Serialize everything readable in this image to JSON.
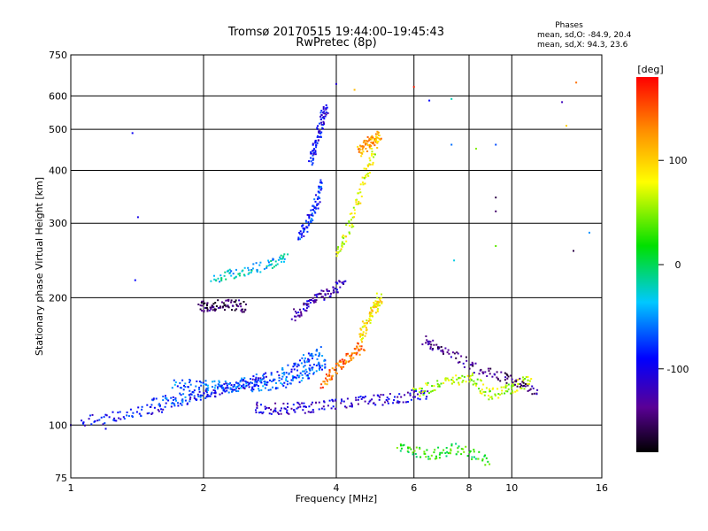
{
  "chart_data": {
    "type": "scatter",
    "title": "Tromsø 20170515 19:44:00–19:45:43",
    "subtitle": "RwPretec (8p)",
    "xlabel": "Frequency [MHz]",
    "ylabel": "Stationary phase Virtual Height [km]",
    "x_scale": "log",
    "y_scale": "log",
    "xlim": [
      1,
      16
    ],
    "ylim": [
      75,
      750
    ],
    "xticks": [
      1,
      2,
      4,
      6,
      8,
      10,
      16
    ],
    "xtick_labels": [
      "1",
      "2",
      "4",
      "6",
      "8",
      "10",
      "16"
    ],
    "yticks": [
      75,
      100,
      200,
      300,
      400,
      500,
      600,
      750
    ],
    "ytick_labels": [
      "75",
      "100",
      "200",
      "300",
      "400",
      "500",
      "600",
      "750"
    ],
    "grid": true,
    "info_box": {
      "heading": "Phases",
      "line1": "mean, sd,O: -84.9, 20.4",
      "line2": "mean, sd,X:  94.3, 23.6"
    },
    "colorbar": {
      "label": "[deg]",
      "range": [
        -180,
        180
      ],
      "ticks": [
        100,
        0,
        -100
      ],
      "tick_labels": [
        "100",
        "0",
        "-100"
      ],
      "colormap": "rainbow-black-to-red"
    },
    "traces": [
      {
        "freq": [
          1.05,
          1.3,
          1.6,
          2.0,
          2.4,
          2.8
        ],
        "height": [
          102,
          105,
          110,
          118,
          124,
          128
        ],
        "phase": -95
      },
      {
        "freq": [
          1.5,
          1.8,
          2.1,
          2.5,
          3.0,
          3.4,
          3.7
        ],
        "height": [
          112,
          116,
          120,
          126,
          132,
          142,
          150
        ],
        "phase": -75
      },
      {
        "freq": [
          1.7,
          2.0,
          2.4,
          2.8,
          3.2,
          3.5,
          3.8
        ],
        "height": [
          125,
          124,
          123,
          124,
          128,
          134,
          140
        ],
        "phase": -65
      },
      {
        "freq": [
          2.6,
          3.0,
          3.4,
          4.0,
          4.8,
          5.6,
          6.5
        ],
        "height": [
          110,
          109,
          110,
          112,
          114,
          116,
          119
        ],
        "phase": -110
      },
      {
        "freq": [
          2.1,
          2.4,
          2.8,
          3.1
        ],
        "height": [
          222,
          230,
          238,
          250
        ],
        "phase": -35
      },
      {
        "freq": [
          1.95,
          2.1,
          2.3,
          2.5
        ],
        "height": [
          190,
          192,
          193,
          190
        ],
        "phase": -150
      },
      {
        "freq": [
          3.2,
          3.5,
          3.8,
          4.2
        ],
        "height": [
          180,
          195,
          205,
          215
        ],
        "phase": -120
      },
      {
        "freq": [
          3.3,
          3.45,
          3.6,
          3.7
        ],
        "height": [
          280,
          300,
          330,
          380
        ],
        "phase": -80
      },
      {
        "freq": [
          3.5,
          3.6,
          3.7,
          3.8
        ],
        "height": [
          420,
          460,
          520,
          560
        ],
        "phase": -100
      },
      {
        "freq": [
          4.0,
          4.3,
          4.6,
          4.9
        ],
        "height": [
          250,
          300,
          380,
          450
        ],
        "phase": 75
      },
      {
        "freq": [
          4.5,
          4.7,
          4.9,
          5.0
        ],
        "height": [
          440,
          460,
          475,
          480
        ],
        "phase": 115
      },
      {
        "freq": [
          4.5,
          4.7,
          4.9,
          5.0
        ],
        "height": [
          160,
          175,
          190,
          200
        ],
        "phase": 90
      },
      {
        "freq": [
          3.7,
          4.0,
          4.3,
          4.6
        ],
        "height": [
          125,
          135,
          145,
          155
        ],
        "phase": 140
      },
      {
        "freq": [
          6.0,
          7.0,
          8.0,
          9.0,
          10.0,
          11.0
        ],
        "height": [
          120,
          125,
          130,
          118,
          122,
          128
        ],
        "phase": 60
      },
      {
        "freq": [
          6.3,
          7.0,
          8.5,
          10.0,
          11.5
        ],
        "height": [
          160,
          150,
          135,
          128,
          120
        ],
        "phase": -140
      },
      {
        "freq": [
          5.5,
          6.5,
          7.5,
          9.0
        ],
        "height": [
          90,
          85,
          88,
          82
        ],
        "phase": 20
      }
    ],
    "points": [
      {
        "freq": 1.38,
        "height": 490,
        "phase": -95
      },
      {
        "freq": 1.42,
        "height": 310,
        "phase": -100
      },
      {
        "freq": 1.4,
        "height": 220,
        "phase": -90
      },
      {
        "freq": 4.0,
        "height": 640,
        "phase": -110
      },
      {
        "freq": 4.4,
        "height": 620,
        "phase": 110
      },
      {
        "freq": 6.0,
        "height": 630,
        "phase": 170
      },
      {
        "freq": 6.5,
        "height": 585,
        "phase": -90
      },
      {
        "freq": 7.3,
        "height": 590,
        "phase": -20
      },
      {
        "freq": 7.3,
        "height": 460,
        "phase": -60
      },
      {
        "freq": 8.3,
        "height": 450,
        "phase": 50
      },
      {
        "freq": 9.2,
        "height": 460,
        "phase": -70
      },
      {
        "freq": 9.2,
        "height": 345,
        "phase": -160
      },
      {
        "freq": 9.2,
        "height": 320,
        "phase": -150
      },
      {
        "freq": 9.2,
        "height": 265,
        "phase": 40
      },
      {
        "freq": 7.4,
        "height": 245,
        "phase": -30
      },
      {
        "freq": 14.0,
        "height": 645,
        "phase": 140
      },
      {
        "freq": 13.0,
        "height": 580,
        "phase": -120
      },
      {
        "freq": 13.3,
        "height": 510,
        "phase": 100
      },
      {
        "freq": 15.0,
        "height": 285,
        "phase": -50
      },
      {
        "freq": 13.8,
        "height": 258,
        "phase": -160
      },
      {
        "freq": 1.0,
        "height": 100,
        "phase": -110
      },
      {
        "freq": 1.2,
        "height": 98,
        "phase": -100
      }
    ]
  }
}
